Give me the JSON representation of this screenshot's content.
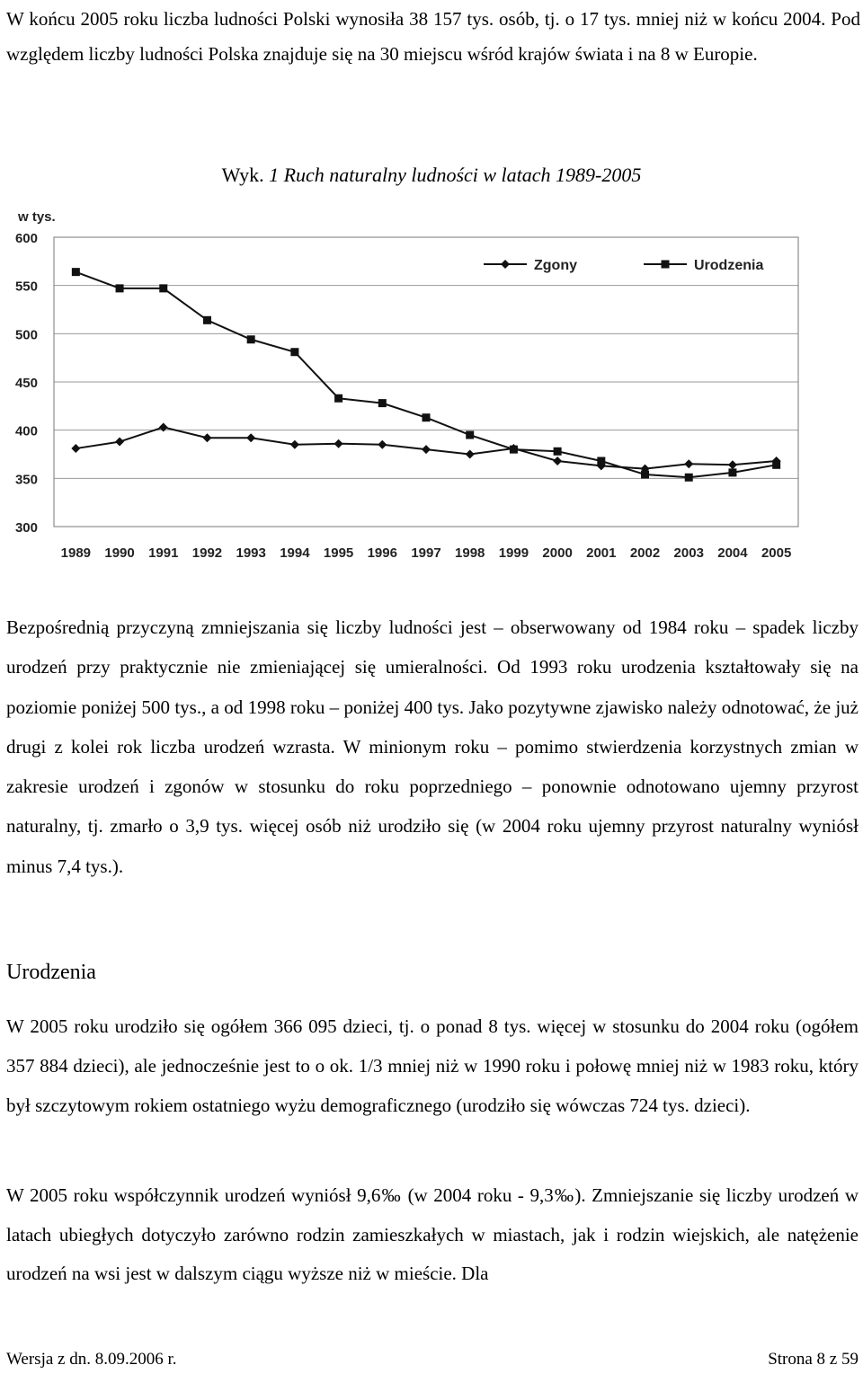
{
  "intro": "W końcu 2005 roku liczba ludności Polski wynosiła 38 157 tys. osób, tj. o 17 tys. mniej niż w końcu 2004. Pod względem liczby ludności Polska znajduje się na 30 miejscu wśród krajów świata i na 8 w Europie.",
  "figure": {
    "label": "Wyk.",
    "title": "1 Ruch naturalny ludności w latach 1989-2005"
  },
  "chart_data": {
    "type": "line",
    "ylabel": "w tys.",
    "ylim": [
      300,
      600
    ],
    "yticks": [
      300,
      350,
      400,
      450,
      500,
      550,
      600
    ],
    "x": [
      "1989",
      "1990",
      "1991",
      "1992",
      "1993",
      "1994",
      "1995",
      "1996",
      "1997",
      "1998",
      "1999",
      "2000",
      "2001",
      "2002",
      "2003",
      "2004",
      "2005"
    ],
    "legend_position": "top-right",
    "grid": "horizontal",
    "series": [
      {
        "name": "Zgony",
        "marker": "diamond",
        "values": [
          381,
          388,
          403,
          392,
          392,
          385,
          386,
          385,
          380,
          375,
          381,
          368,
          363,
          360,
          365,
          364,
          368
        ]
      },
      {
        "name": "Urodzenia",
        "marker": "square",
        "values": [
          564,
          547,
          547,
          514,
          494,
          481,
          433,
          428,
          413,
          395,
          380,
          378,
          368,
          354,
          351,
          356,
          364
        ]
      }
    ]
  },
  "paragraph2": "Bezpośrednią przyczyną zmniejszania się liczby ludności jest – obserwowany od 1984 roku – spadek liczby urodzeń przy praktycznie nie zmieniającej się umieralności. Od 1993 roku urodzenia kształtowały się na poziomie poniżej 500 tys., a od 1998 roku – poniżej 400 tys. Jako pozytywne zjawisko należy odnotować, że już drugi z kolei rok liczba urodzeń wzrasta. W minionym roku – pomimo stwierdzenia korzystnych zmian w zakresie urodzeń i zgonów w stosunku do roku poprzedniego – ponownie odnotowano ujemny przyrost naturalny, tj. zmarło o 3,9 tys. więcej osób niż urodziło się (w 2004 roku ujemny przyrost naturalny wyniósł minus 7,4 tys.).",
  "section_heading": "Urodzenia",
  "paragraph3": "W 2005 roku urodziło się ogółem 366 095 dzieci, tj. o ponad 8 tys. więcej w stosunku do 2004 roku (ogółem 357 884 dzieci), ale jednocześnie jest to o ok. 1/3 mniej niż w 1990 roku i połowę mniej niż w 1983 roku, który był szczytowym rokiem ostatniego wyżu demograficznego (urodziło się wówczas 724 tys. dzieci).",
  "paragraph4": "W 2005 roku współczynnik urodzeń wyniósł 9,6‰ (w 2004 roku - 9,3‰). Zmniejszanie się liczby urodzeń w latach ubiegłych dotyczyło zarówno rodzin zamieszkałych w miastach, jak i rodzin wiejskich, ale natężenie urodzeń na wsi jest w dalszym ciągu wyższe niż w mieście. Dla",
  "footer": {
    "version": "Wersja z dn. 8.09.2006 r.",
    "page": "Strona 8 z 59"
  }
}
